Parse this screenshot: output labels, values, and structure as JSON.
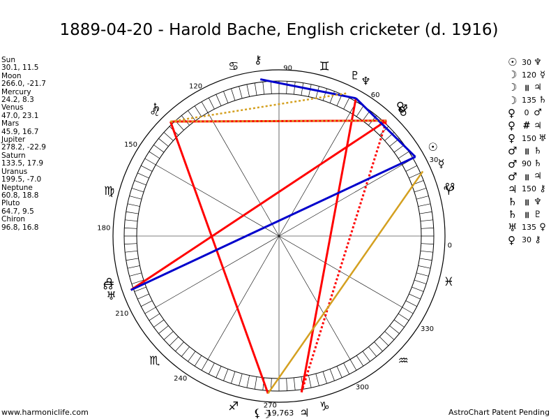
{
  "title": "1889-04-20 - Harold Bache, English cricketer (d. 1916)",
  "positions": [
    {
      "name": "Sun",
      "value": "30.1, 11.5"
    },
    {
      "name": "Moon",
      "value": "266.0, -21.7"
    },
    {
      "name": "Mercury",
      "value": "24.2, 8.3"
    },
    {
      "name": "Venus",
      "value": "47.0, 23.1"
    },
    {
      "name": "Mars",
      "value": "45.9, 16.7"
    },
    {
      "name": "Jupiter",
      "value": "278.2, -22.9"
    },
    {
      "name": "Saturn",
      "value": "133.5, 17.9"
    },
    {
      "name": "Uranus",
      "value": "199.5, -7.0"
    },
    {
      "name": "Neptune",
      "value": "60.8, 18.8"
    },
    {
      "name": "Pluto",
      "value": "64.7, 9.5"
    },
    {
      "name": "Chiron",
      "value": "96.8, 16.8"
    }
  ],
  "aspects": [
    {
      "p1": "☉",
      "aspect": "30",
      "p2": "♆"
    },
    {
      "p1": "☽",
      "aspect": "120",
      "p2": "☿"
    },
    {
      "p1": "☽",
      "aspect": "॥",
      "p2": "♃"
    },
    {
      "p1": "☽",
      "aspect": "135",
      "p2": "♄"
    },
    {
      "p1": "♀",
      "aspect": "0",
      "p2": "♂"
    },
    {
      "p1": "♀",
      "aspect": "#",
      "p2": "♃"
    },
    {
      "p1": "♀",
      "aspect": "150",
      "p2": "♅"
    },
    {
      "p1": "♂",
      "aspect": "॥",
      "p2": "♄"
    },
    {
      "p1": "♂",
      "aspect": "90",
      "p2": "♄"
    },
    {
      "p1": "♂",
      "aspect": "॥",
      "p2": "♃"
    },
    {
      "p1": "♃",
      "aspect": "150",
      "p2": "⚷"
    },
    {
      "p1": "♄",
      "aspect": "॥",
      "p2": "♆"
    },
    {
      "p1": "♄",
      "aspect": "॥",
      "p2": "♇"
    },
    {
      "p1": "♅",
      "aspect": "135",
      "p2": "♀"
    },
    {
      "p1": "♀",
      "aspect": "30",
      "p2": "⚷"
    }
  ],
  "wheel": {
    "degree_labels": [
      "0",
      "30",
      "60",
      "90",
      "120",
      "150",
      "180",
      "210",
      "240",
      "270",
      "300",
      "330"
    ],
    "zodiac": [
      {
        "name": "aries-icon",
        "glyph": "♈",
        "lon": 15
      },
      {
        "name": "taurus-icon",
        "glyph": "♉",
        "lon": 45
      },
      {
        "name": "gemini-icon",
        "glyph": "♊",
        "lon": 75
      },
      {
        "name": "cancer-icon",
        "glyph": "♋",
        "lon": 105
      },
      {
        "name": "leo-icon",
        "glyph": "♌",
        "lon": 135
      },
      {
        "name": "virgo-icon",
        "glyph": "♍",
        "lon": 165
      },
      {
        "name": "libra-icon",
        "glyph": "♎",
        "lon": 195
      },
      {
        "name": "scorpio-icon",
        "glyph": "♏",
        "lon": 225
      },
      {
        "name": "sagittarius-icon",
        "glyph": "♐",
        "lon": 255
      },
      {
        "name": "capricorn-icon",
        "glyph": "♑",
        "lon": 285
      },
      {
        "name": "aquarius-icon",
        "glyph": "♒",
        "lon": 315
      },
      {
        "name": "pisces-icon",
        "glyph": "♓",
        "lon": 345
      }
    ],
    "bodies": [
      {
        "name": "sun-icon",
        "glyph": "☉",
        "lon": 30.1
      },
      {
        "name": "moon-icon",
        "glyph": "☽",
        "lon": 266.0
      },
      {
        "name": "mercury-icon",
        "glyph": "☿",
        "lon": 24.2
      },
      {
        "name": "venus-icon",
        "glyph": "♀",
        "lon": 47.0
      },
      {
        "name": "mars-icon",
        "glyph": "♂",
        "lon": 45.9
      },
      {
        "name": "jupiter-icon",
        "glyph": "♃",
        "lon": 278.2
      },
      {
        "name": "saturn-icon",
        "glyph": "♄",
        "lon": 133.5
      },
      {
        "name": "uranus-icon",
        "glyph": "♅",
        "lon": 199.5
      },
      {
        "name": "neptune-icon",
        "glyph": "♆",
        "lon": 60.8
      },
      {
        "name": "pluto-icon",
        "glyph": "♇",
        "lon": 64.7
      },
      {
        "name": "chiron-icon",
        "glyph": "⚷",
        "lon": 96.8
      },
      {
        "name": "north-node-icon",
        "glyph": "☊",
        "lon": 196.0
      },
      {
        "name": "south-node-icon",
        "glyph": "☋",
        "lon": 16.0
      },
      {
        "name": "lilith-icon",
        "glyph": "⚸",
        "lon": 263.0
      }
    ],
    "bottom_value": "-19,763",
    "colors": {
      "red": "#ff0000",
      "blue": "#0000cc",
      "gold": "#d4a020"
    },
    "aspect_lines": [
      {
        "a": 266.0,
        "b": 133.5,
        "color": "red",
        "dash": false
      },
      {
        "a": 278.2,
        "b": 60.8,
        "color": "red",
        "dash": false
      },
      {
        "a": 200.0,
        "b": 47.0,
        "color": "red",
        "dash": false
      },
      {
        "a": 133.5,
        "b": 47.0,
        "color": "red",
        "dash": false
      },
      {
        "a": 278.2,
        "b": 47.0,
        "color": "red",
        "dash": true
      },
      {
        "a": 200.0,
        "b": 30.1,
        "color": "blue",
        "dash": false
      },
      {
        "a": 30.1,
        "b": 60.8,
        "color": "blue",
        "dash": false
      },
      {
        "a": 60.8,
        "b": 96.8,
        "color": "blue",
        "dash": false
      },
      {
        "a": 266.0,
        "b": 24.2,
        "color": "gold",
        "dash": false
      },
      {
        "a": 133.5,
        "b": 47.0,
        "color": "gold",
        "dash": true
      },
      {
        "a": 133.5,
        "b": 64.7,
        "color": "gold",
        "dash": true
      }
    ]
  },
  "footer": {
    "left": "www.harmoniclife.com",
    "right": "AstroChart Patent Pending"
  }
}
